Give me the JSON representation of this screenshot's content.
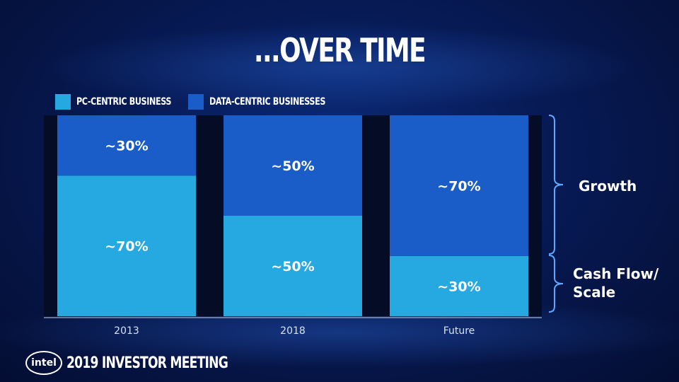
{
  "slide": {
    "title": "...OVER TIME",
    "footer_logo": "intel",
    "footer_event": "2019 INVESTOR MEETING"
  },
  "legend": [
    {
      "label": "PC-CENTRIC BUSINESS",
      "color": "#26a8e0"
    },
    {
      "label": "DATA-CENTRIC BUSINESSES",
      "color": "#1a5cc8"
    }
  ],
  "side_labels": {
    "growth": "Growth",
    "cash_flow": "Cash Flow/ Scale"
  },
  "chart_data": {
    "type": "bar",
    "stacked": true,
    "categories": [
      "2013",
      "2018",
      "Future"
    ],
    "series": [
      {
        "name": "PC-CENTRIC BUSINESS",
        "values": [
          70,
          50,
          30
        ],
        "labels": [
          "~70%",
          "~50%",
          "~30%"
        ],
        "color": "#26a8e0"
      },
      {
        "name": "DATA-CENTRIC BUSINESSES",
        "values": [
          30,
          50,
          70
        ],
        "labels": [
          "~30%",
          "~50%",
          "~70%"
        ],
        "color": "#1a5cc8"
      }
    ],
    "ylim": [
      0,
      100
    ],
    "grid": false,
    "legend_position": "top-left"
  }
}
